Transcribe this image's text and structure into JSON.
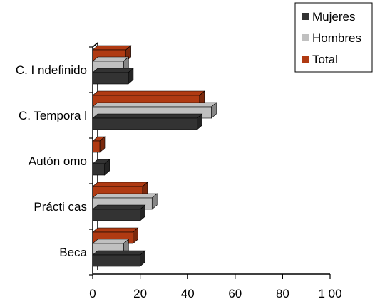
{
  "chart_data": {
    "type": "bar",
    "orientation": "horizontal",
    "three_d": true,
    "title": "",
    "xlabel": "",
    "ylabel": "",
    "categories": [
      "C. Indefinido",
      "C. Temporal",
      "Autónomo",
      "Prácticas",
      "Beca"
    ],
    "series": [
      {
        "name": "Mujeres",
        "color": "#333333",
        "values": [
          15,
          44,
          5,
          20,
          20
        ]
      },
      {
        "name": "Hombres",
        "color": "#c0c0c0",
        "values": [
          13,
          50,
          0,
          25,
          13
        ]
      },
      {
        "name": "Total",
        "color": "#b03a12",
        "values": [
          14,
          45,
          3,
          21,
          17
        ]
      }
    ],
    "xlim": [
      0,
      100
    ],
    "x_ticks": [
      0,
      20,
      40,
      60,
      80,
      100
    ],
    "x_tick_labels": [
      "0",
      "20",
      "40",
      "60",
      "80",
      "1 00"
    ],
    "category_tick_labels": [
      "C. I ndefinido",
      "C. Tempora l",
      "Autón omo",
      "Prácti cas",
      "Beca"
    ],
    "grid": false,
    "legend_position": "top-right"
  }
}
